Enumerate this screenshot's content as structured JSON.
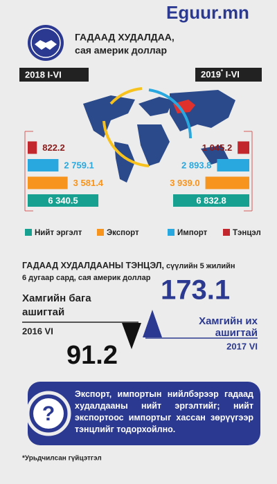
{
  "logo": "Eguur.mn",
  "header": {
    "title": "ГАДААД ХУДАЛДАА,",
    "subtitle": "сая америк доллар"
  },
  "trade": {
    "series": [
      {
        "name": "Нийт эргэлт",
        "color": "#17a08f"
      },
      {
        "name": "Экспорт",
        "color": "#f7941d"
      },
      {
        "name": "Импорт",
        "color": "#29a8e0"
      },
      {
        "name": "Тэнцэл",
        "color": "#c1272d"
      }
    ],
    "left": {
      "period": "2018 I-VI",
      "values": [
        6340.5,
        3581.4,
        2759.1,
        822.2
      ],
      "value_labels": [
        "6 340.5",
        "3 581.4",
        "2 759.1",
        "822.2"
      ]
    },
    "right": {
      "period_year": "2019",
      "period_mark": "*",
      "period_rest": " I-VI",
      "values": [
        6832.8,
        3939.0,
        2893.8,
        1045.2
      ],
      "value_labels": [
        "6 832.8",
        "3 939.0",
        "2 893.8",
        "1 045.2"
      ]
    }
  },
  "balance": {
    "title": "ГАДААД ХУДАЛДААНЫ ТЭНЦЭЛ,",
    "title_rest": " сүүлийн 5 жилийн",
    "title_line2": "6 дугаар сард, сая америк доллар",
    "min": {
      "label_1": "Хамгийн бага",
      "label_2": "ашигтай",
      "period": "2016 VI",
      "value": 91.2
    },
    "max": {
      "label_1": "Хамгийн их",
      "label_2": "ашигтай",
      "period": "2017 VI",
      "value": 173.1
    }
  },
  "note": "Экспорт, импортын нийлбэрээр гадаад худалдааны нийт эргэлтийг; нийт экспортоос импортыг хассан зөрүүгээр тэнцлийг тодорхойлно.",
  "footnote": "*Урьдчилсан гүйцэтгэл"
}
